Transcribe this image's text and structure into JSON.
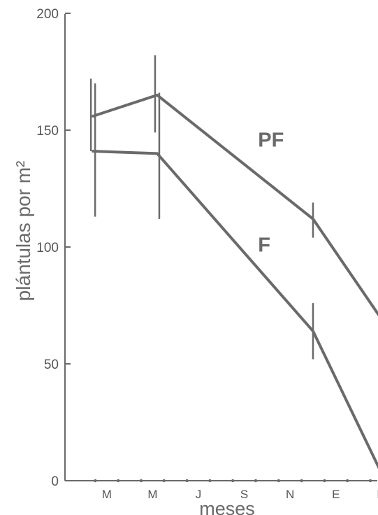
{
  "chart_data": {
    "type": "line",
    "ylabel": "plántulas por m²",
    "xlabel": "meses",
    "ylim": [
      0,
      200
    ],
    "yticks": [
      0,
      50,
      100,
      150,
      200
    ],
    "xlim": [
      0,
      12.6
    ],
    "month_labels": [
      {
        "label": "M",
        "x": 1.0
      },
      {
        "label": "M",
        "x": 3.0
      },
      {
        "label": "J",
        "x": 5.0
      },
      {
        "label": "S",
        "x": 7.0
      },
      {
        "label": "N",
        "x": 9.0
      },
      {
        "label": "E",
        "x": 11.0
      },
      {
        "label": "M",
        "x": 13.0
      }
    ],
    "minor_ticks": [
      0.5,
      1.5,
      2.5,
      3.5,
      4.5,
      5.5,
      6.5,
      7.5,
      8.5,
      9.5,
      10.5,
      11.5,
      12.5
    ],
    "series": [
      {
        "name": "PF",
        "color": "#6a6a6a",
        "points": [
          {
            "x": 0.4,
            "y": 156,
            "lo": 141,
            "hi": 172
          },
          {
            "x": 3.2,
            "y": 165,
            "lo": 149,
            "hi": 182
          },
          {
            "x": 10.0,
            "y": 112,
            "lo": 104,
            "hi": 119
          },
          {
            "x": 13.0,
            "y": 69,
            "lo": 65,
            "hi": 73
          }
        ]
      },
      {
        "name": "F",
        "color": "#6a6a6a",
        "points": [
          {
            "x": 0.4,
            "y": 141,
            "lo": 113,
            "hi": 170
          },
          {
            "x": 3.2,
            "y": 140,
            "lo": 112,
            "hi": 166
          },
          {
            "x": 10.0,
            "y": 64,
            "lo": 52,
            "hi": 76
          },
          {
            "x": 13.0,
            "y": 3,
            "lo": 3,
            "hi": 3
          }
        ]
      }
    ],
    "series_labels": [
      {
        "text": "PF",
        "x": 7.6,
        "y": 143
      },
      {
        "text": "F",
        "x": 7.6,
        "y": 98
      }
    ]
  }
}
